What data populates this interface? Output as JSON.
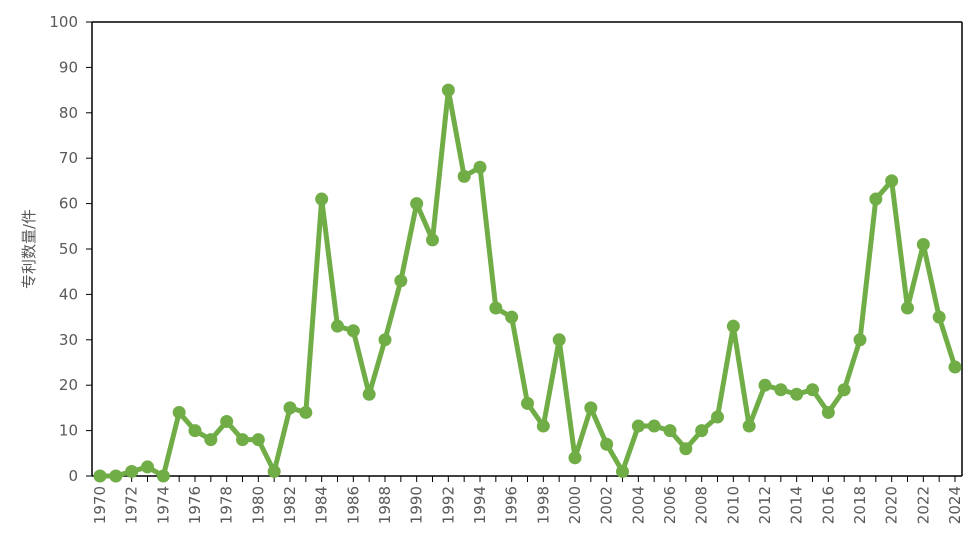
{
  "chart_data": {
    "type": "line",
    "title": "",
    "xlabel": "",
    "ylabel": "专利数量/件",
    "ylim": [
      0,
      100
    ],
    "yticks": [
      0,
      10,
      20,
      30,
      40,
      50,
      60,
      70,
      80,
      90,
      100
    ],
    "grid": false,
    "legend": "none",
    "x": [
      1970,
      1971,
      1972,
      1973,
      1974,
      1975,
      1976,
      1977,
      1978,
      1979,
      1980,
      1981,
      1982,
      1983,
      1984,
      1985,
      1986,
      1987,
      1988,
      1989,
      1990,
      1991,
      1992,
      1993,
      1994,
      1995,
      1996,
      1997,
      1998,
      1999,
      2000,
      2001,
      2002,
      2003,
      2004,
      2005,
      2006,
      2007,
      2008,
      2009,
      2010,
      2011,
      2012,
      2013,
      2014,
      2015,
      2016,
      2017,
      2018,
      2019,
      2020,
      2021,
      2022,
      2023,
      2024
    ],
    "xtick_labels": [
      "1970",
      "1972",
      "1974",
      "1976",
      "1978",
      "1980",
      "1982",
      "1984",
      "1986",
      "1988",
      "1990",
      "1992",
      "1994",
      "1996",
      "1998",
      "2000",
      "2002",
      "2004",
      "2006",
      "2008",
      "2010",
      "2012",
      "2014",
      "2016",
      "2018",
      "2020",
      "2022",
      "2024"
    ],
    "series": [
      {
        "values": [
          0,
          0,
          1,
          2,
          0,
          14,
          10,
          8,
          12,
          8,
          8,
          1,
          15,
          14,
          61,
          33,
          32,
          18,
          30,
          43,
          60,
          52,
          85,
          66,
          68,
          37,
          35,
          16,
          11,
          30,
          4,
          15,
          7,
          1,
          11,
          11,
          10,
          6,
          10,
          13,
          33,
          11,
          20,
          19,
          18,
          19,
          14,
          19,
          30,
          61,
          65,
          37,
          51,
          35,
          24
        ],
        "color": "#70AD47"
      }
    ],
    "colors": {
      "axis": "#000000",
      "tick_text": "#595959",
      "series": "#70AD47"
    }
  }
}
